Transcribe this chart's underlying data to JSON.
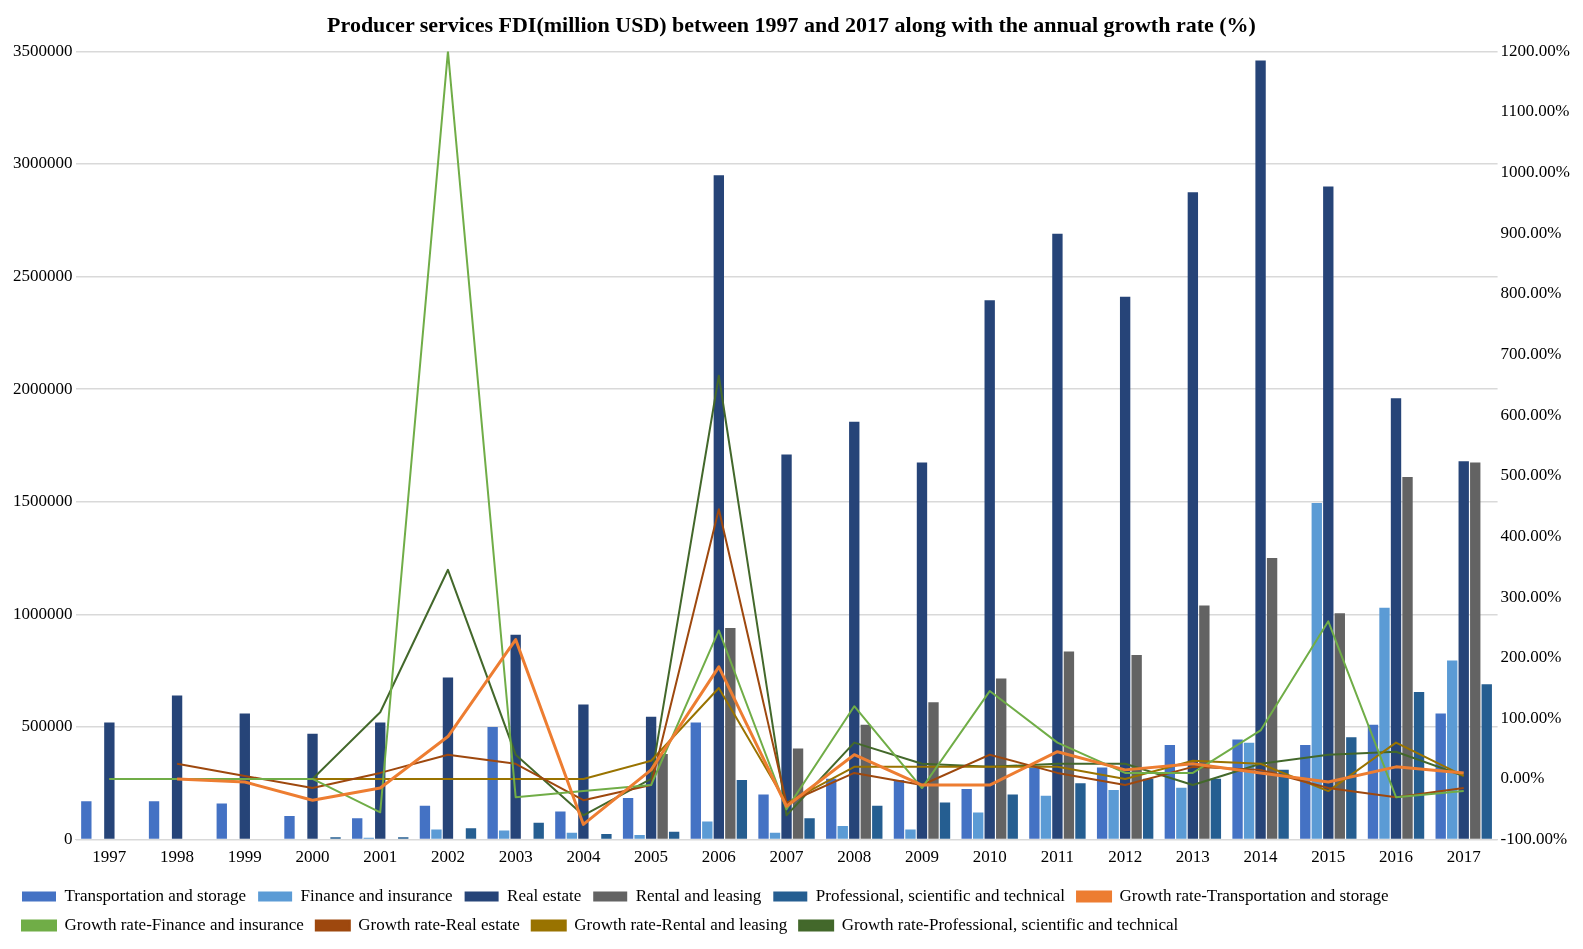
{
  "chart_data": {
    "type": "bar",
    "title": "Producer services FDI(million USD) between 1997 and 2017 along with the annual growth rate (%)",
    "categories": [
      "1997",
      "1998",
      "1999",
      "2000",
      "2001",
      "2002",
      "2003",
      "2004",
      "2005",
      "2006",
      "2007",
      "2008",
      "2009",
      "2010",
      "2011",
      "2012",
      "2013",
      "2014",
      "2015",
      "2016",
      "2017"
    ],
    "series": [
      {
        "name": "Transportation and storage",
        "color": "#4472c4",
        "values": [
          170000,
          170000,
          160000,
          105000,
          95000,
          150000,
          500000,
          125000,
          185000,
          520000,
          200000,
          270000,
          265000,
          225000,
          320000,
          320000,
          420000,
          445000,
          420000,
          510000,
          560000
        ]
      },
      {
        "name": "Finance and insurance",
        "color": "#5b9bd5",
        "values": [
          null,
          null,
          null,
          null,
          8000,
          45000,
          40000,
          30000,
          20000,
          80000,
          30000,
          60000,
          45000,
          120000,
          195000,
          220000,
          230000,
          430000,
          1495000,
          1030000,
          795000
        ]
      },
      {
        "name": "Real estate",
        "color": "#264478",
        "values": [
          520000,
          640000,
          560000,
          470000,
          520000,
          720000,
          910000,
          600000,
          545000,
          2950000,
          1710000,
          1855000,
          1675000,
          2395000,
          2690000,
          2410000,
          2875000,
          3460000,
          2900000,
          1960000,
          1680000
        ]
      },
      {
        "name": "Rental and leasing",
        "color": "#636363",
        "values": [
          null,
          null,
          null,
          null,
          null,
          null,
          null,
          null,
          380000,
          940000,
          405000,
          510000,
          610000,
          715000,
          835000,
          820000,
          1040000,
          1250000,
          1005000,
          1610000,
          1675000
        ]
      },
      {
        "name": "Professional, scientific and technical",
        "color": "#255e91",
        "values": [
          null,
          null,
          null,
          10000,
          10000,
          50000,
          75000,
          25000,
          35000,
          265000,
          95000,
          150000,
          165000,
          200000,
          250000,
          270000,
          270000,
          310000,
          455000,
          655000,
          690000
        ]
      },
      {
        "name": "Growth rate-Transportation and storage",
        "type": "line",
        "axis": "y2",
        "color": "#ed7d31",
        "values": [
          null,
          0,
          -5,
          -35,
          -15,
          70,
          230,
          -75,
          15,
          185,
          -45,
          40,
          -10,
          -10,
          45,
          15,
          25,
          10,
          -5,
          20,
          10
        ]
      },
      {
        "name": "Growth rate-Finance and insurance",
        "type": "line",
        "axis": "y2",
        "color": "#70ad47",
        "values": [
          0,
          0,
          0,
          0,
          -55,
          1200,
          -30,
          -20,
          -10,
          245,
          -50,
          120,
          -15,
          145,
          60,
          10,
          10,
          80,
          260,
          -30,
          -20
        ]
      },
      {
        "name": "Growth rate-Real estate",
        "type": "line",
        "axis": "y2",
        "color": "#9e480e",
        "values": [
          null,
          25,
          5,
          -15,
          10,
          40,
          25,
          -35,
          -10,
          445,
          -40,
          10,
          -10,
          40,
          10,
          -10,
          20,
          15,
          -15,
          -30,
          -15
        ]
      },
      {
        "name": "Growth rate-Rental and leasing",
        "type": "line",
        "axis": "y2",
        "color": "#997300",
        "values": [
          0,
          0,
          0,
          0,
          0,
          0,
          0,
          0,
          30,
          150,
          -40,
          20,
          20,
          20,
          20,
          0,
          30,
          25,
          -20,
          60,
          5
        ]
      },
      {
        "name": "Growth rate-Professional, scientific and technical",
        "type": "line",
        "axis": "y2",
        "color": "#43682b",
        "values": [
          0,
          0,
          0,
          0,
          110,
          345,
          40,
          -60,
          0,
          665,
          -60,
          60,
          25,
          20,
          25,
          25,
          -10,
          25,
          40,
          45,
          5
        ]
      }
    ],
    "ylim": [
      0,
      3500000
    ],
    "yticks": [
      0,
      500000,
      1000000,
      1500000,
      2000000,
      2500000,
      3000000,
      3500000
    ],
    "y2lim": [
      -100,
      1200
    ],
    "y2ticks": [
      {
        "value": -100,
        "label": "-100.00%"
      },
      {
        "value": 0,
        "label": "0.00%"
      },
      {
        "value": 100,
        "label": "100.00%"
      },
      {
        "value": 200,
        "label": "200.00%"
      },
      {
        "value": 300,
        "label": "300.00%"
      },
      {
        "value": 400,
        "label": "400.00%"
      },
      {
        "value": 500,
        "label": "500.00%"
      },
      {
        "value": 600,
        "label": "600.00%"
      },
      {
        "value": 700,
        "label": "700.00%"
      },
      {
        "value": 800,
        "label": "800.00%"
      },
      {
        "value": 900,
        "label": "900.00%"
      },
      {
        "value": 1000,
        "label": "1000.00%"
      },
      {
        "value": 1100,
        "label": "1100.00%"
      },
      {
        "value": 1200,
        "label": "1200.00%"
      }
    ],
    "grid": "y",
    "legend": "bottom",
    "marker": "none",
    "line_style": "solid"
  }
}
